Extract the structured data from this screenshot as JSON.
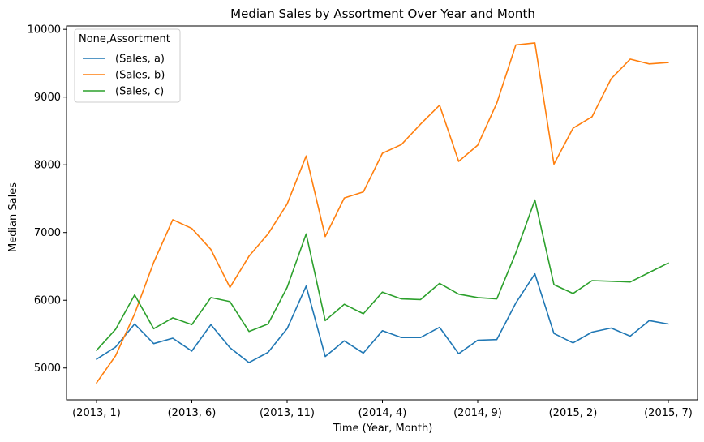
{
  "chart_data": {
    "type": "line",
    "title": "Median Sales by Assortment Over Year and Month",
    "xlabel": "Time (Year, Month)",
    "ylabel": "Median Sales",
    "ylim": [
      4530,
      10050
    ],
    "y_ticks": [
      5000,
      6000,
      7000,
      8000,
      9000,
      10000
    ],
    "x_tick_labels": [
      "(2013, 1)",
      "(2013, 6)",
      "(2013, 11)",
      "(2014, 4)",
      "(2014, 9)",
      "(2015, 2)",
      "(2015, 7)"
    ],
    "x": [
      "(2013, 1)",
      "(2013, 2)",
      "(2013, 3)",
      "(2013, 4)",
      "(2013, 5)",
      "(2013, 6)",
      "(2013, 7)",
      "(2013, 8)",
      "(2013, 9)",
      "(2013, 10)",
      "(2013, 11)",
      "(2013, 12)",
      "(2014, 1)",
      "(2014, 2)",
      "(2014, 3)",
      "(2014, 4)",
      "(2014, 5)",
      "(2014, 6)",
      "(2014, 7)",
      "(2014, 8)",
      "(2014, 9)",
      "(2014, 10)",
      "(2014, 11)",
      "(2014, 12)",
      "(2015, 1)",
      "(2015, 2)",
      "(2015, 3)",
      "(2015, 4)",
      "(2015, 5)",
      "(2015, 6)",
      "(2015, 7)"
    ],
    "legend_title": "None,Assortment",
    "legend_position": "top-left",
    "grid": false,
    "series": [
      {
        "name": "(Sales, a)",
        "color": "#1f77b4",
        "values": [
          5130,
          5310,
          5650,
          5360,
          5440,
          5250,
          5640,
          5300,
          5080,
          5230,
          5580,
          6210,
          5170,
          5400,
          5220,
          5550,
          5450,
          5450,
          5600,
          5210,
          5410,
          5420,
          5960,
          6390,
          5510,
          5370,
          5530,
          5590,
          5470,
          5700,
          5650
        ]
      },
      {
        "name": "(Sales, b)",
        "color": "#ff7f0e",
        "values": [
          4780,
          5180,
          5800,
          6560,
          7190,
          7060,
          6750,
          6190,
          6650,
          6980,
          7420,
          8130,
          6940,
          7510,
          7600,
          8170,
          8300,
          8600,
          8880,
          8050,
          8290,
          8910,
          9770,
          9800,
          8010,
          8540,
          8710,
          9270,
          9560,
          9490,
          9510
        ]
      },
      {
        "name": "(Sales, c)",
        "color": "#2ca02c",
        "values": [
          5260,
          5570,
          6080,
          5580,
          5740,
          5640,
          6040,
          5980,
          5540,
          5650,
          6190,
          6980,
          5700,
          5940,
          5800,
          6120,
          6020,
          6010,
          6250,
          6090,
          6040,
          6020,
          6700,
          7480,
          6230,
          6100,
          6290,
          6280,
          6270,
          6410,
          6550
        ]
      }
    ]
  }
}
